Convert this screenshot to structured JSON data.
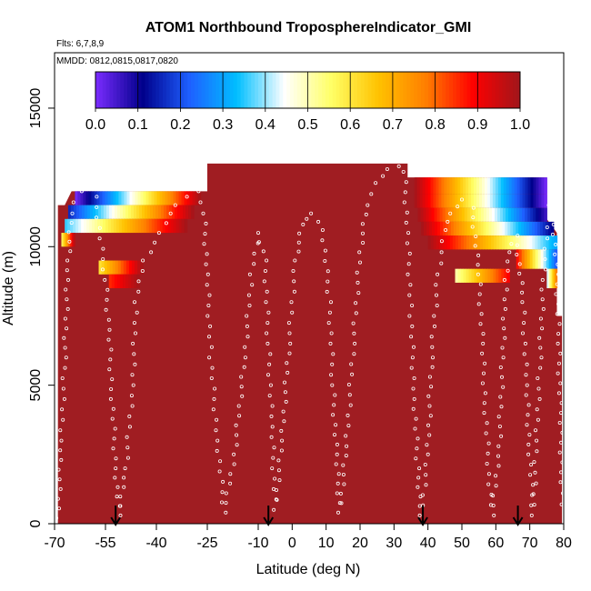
{
  "chart_data": {
    "type": "heatmap",
    "title": "ATOM1 Northbound TroposphereIndicator_GMI",
    "flights_label": "Flts: 6,7,8,9",
    "dates_label": "MMDD: 0812,0815,0817,0820",
    "xlabel": "Latitude (deg N)",
    "ylabel": "Altitude (m)",
    "xlim": [
      -70,
      80
    ],
    "ylim": [
      0,
      17000
    ],
    "x_ticks": [
      -70,
      -55,
      -40,
      -25,
      -10,
      0,
      10,
      20,
      30,
      40,
      50,
      60,
      70,
      80
    ],
    "x_tick_labels": [
      "-70",
      "-55",
      "-40",
      "-25",
      "-10",
      "0",
      "10",
      "20",
      "30",
      "40",
      "50",
      "60",
      "70",
      "80"
    ],
    "y_ticks": [
      0,
      5000,
      10000,
      15000
    ],
    "y_tick_labels": [
      "0",
      "5000",
      "10000",
      "15000"
    ],
    "colorbar": {
      "ticks": [
        0.0,
        0.1,
        0.2,
        0.3,
        0.4,
        0.5,
        0.6,
        0.7,
        0.8,
        0.9,
        1.0
      ],
      "tick_labels": [
        "0.0",
        "0.1",
        "0.2",
        "0.3",
        "0.4",
        "0.5",
        "0.6",
        "0.7",
        "0.8",
        "0.9",
        "1.0"
      ],
      "colors": [
        "#7b2cff",
        "#00008b",
        "#1e60ff",
        "#00bfff",
        "#ffffff",
        "#ffff66",
        "#ffc200",
        "#ff7f00",
        "#ff0000",
        "#a0161b"
      ]
    },
    "background_value": 1.0,
    "background_color": "#a01d22",
    "domain": [
      {
        "x": -69,
        "top": 11500
      },
      {
        "x": -67,
        "top": 11500
      },
      {
        "x": -65,
        "top": 12000
      },
      {
        "x": -25,
        "top": 12000
      },
      {
        "x": -25,
        "top": 13000
      },
      {
        "x": 34,
        "top": 13000
      },
      {
        "x": 34,
        "top": 12500
      },
      {
        "x": 75,
        "top": 12500
      },
      {
        "x": 75,
        "top": 11000
      },
      {
        "x": 78,
        "top": 10500
      },
      {
        "x": 78,
        "top": 7500
      },
      {
        "x": 79.5,
        "top": 7500
      }
    ],
    "gradient_bands": [
      {
        "x0": -64,
        "x1": -27,
        "y0": 11500,
        "y1": 12000,
        "values_from": 0.0,
        "values_to": 1.0
      },
      {
        "x0": -66,
        "x1": -29,
        "y0": 11000,
        "y1": 11500,
        "values_from": 0.15,
        "values_to": 1.0
      },
      {
        "x0": -67,
        "x1": -31,
        "y0": 10500,
        "y1": 11000,
        "values_from": 0.35,
        "values_to": 1.0
      },
      {
        "x0": -68,
        "x1": -64,
        "y0": 10000,
        "y1": 10500,
        "values_from": 0.55,
        "values_to": 1.0
      },
      {
        "x0": -57,
        "x1": -44,
        "y0": 9000,
        "y1": 9500,
        "values_from": 0.6,
        "values_to": 1.0
      },
      {
        "x0": -54,
        "x1": -45,
        "y0": 8500,
        "y1": 9000,
        "values_from": 0.85,
        "values_to": 1.0
      },
      {
        "x0": 36,
        "x1": 75,
        "y0": 11900,
        "y1": 12500,
        "values_from": 1.0,
        "values_to": 0.0
      },
      {
        "x0": 36,
        "x1": 75,
        "y0": 11400,
        "y1": 11900,
        "values_from": 1.0,
        "values_to": 0.0
      },
      {
        "x0": 37,
        "x1": 75,
        "y0": 10900,
        "y1": 11400,
        "values_from": 1.0,
        "values_to": 0.05
      },
      {
        "x0": 38,
        "x1": 77,
        "y0": 10400,
        "y1": 10900,
        "values_from": 1.0,
        "values_to": 0.1
      },
      {
        "x0": 40,
        "x1": 78,
        "y0": 9900,
        "y1": 10400,
        "values_from": 1.0,
        "values_to": 0.3
      },
      {
        "x0": 66,
        "x1": 78,
        "y0": 9200,
        "y1": 9900,
        "values_from": 0.9,
        "values_to": 0.2
      },
      {
        "x0": 48,
        "x1": 64,
        "y0": 8700,
        "y1": 9200,
        "values_from": 0.5,
        "values_to": 0.9
      },
      {
        "x0": 75,
        "x1": 78,
        "y0": 8500,
        "y1": 9200,
        "values_from": 0.4,
        "values_to": 0.8
      }
    ],
    "flight_tracks": [
      {
        "name": "6",
        "points": [
          [
            -69,
            200
          ],
          [
            -68,
            3000
          ],
          [
            -67,
            6000
          ],
          [
            -66,
            9500
          ],
          [
            -65,
            11200
          ],
          [
            -64,
            11600
          ],
          [
            -62,
            12000
          ],
          [
            -58,
            11800
          ],
          [
            -55,
            8800
          ],
          [
            -54,
            7000
          ],
          [
            -53,
            4500
          ],
          [
            -52,
            2000
          ],
          [
            -51,
            300
          ],
          [
            -49,
            2000
          ],
          [
            -47,
            5000
          ],
          [
            -46,
            8000
          ],
          [
            -44,
            9500
          ],
          [
            -42,
            9800
          ],
          [
            -39,
            10500
          ],
          [
            -36,
            11200
          ],
          [
            -34,
            11500
          ],
          [
            -31,
            11800
          ],
          [
            -28,
            12000
          ],
          [
            -26,
            11200
          ],
          [
            -25,
            9000
          ],
          [
            -24,
            6000
          ],
          [
            -22,
            3000
          ],
          [
            -20,
            400
          ],
          [
            -17,
            2500
          ],
          [
            -14,
            6000
          ],
          [
            -12,
            9000
          ],
          [
            -10,
            10500
          ],
          [
            -8,
            9500
          ],
          [
            -7,
            6500
          ],
          [
            -6,
            3500
          ],
          [
            -5,
            500
          ]
        ]
      },
      {
        "name": "7",
        "points": [
          [
            -5,
            500
          ],
          [
            -3,
            3000
          ],
          [
            -1,
            6500
          ],
          [
            1,
            9500
          ],
          [
            3,
            10800
          ],
          [
            6,
            11200
          ],
          [
            9,
            10600
          ],
          [
            11,
            8000
          ],
          [
            12,
            5000
          ],
          [
            13,
            2500
          ],
          [
            14,
            400
          ],
          [
            16,
            2800
          ],
          [
            18,
            6500
          ],
          [
            20,
            9800
          ],
          [
            22,
            11500
          ],
          [
            25,
            12300
          ],
          [
            28,
            12800
          ],
          [
            31,
            12900
          ],
          [
            33,
            12700
          ],
          [
            34,
            10500
          ],
          [
            35,
            7500
          ],
          [
            36,
            4500
          ],
          [
            37,
            2000
          ],
          [
            38,
            300
          ]
        ]
      },
      {
        "name": "8",
        "points": [
          [
            38,
            300
          ],
          [
            40,
            2500
          ],
          [
            41,
            6000
          ],
          [
            43,
            9000
          ],
          [
            45,
            10600
          ],
          [
            47,
            11200
          ],
          [
            50,
            11700
          ],
          [
            53,
            11400
          ],
          [
            55,
            9000
          ],
          [
            56,
            6500
          ],
          [
            57,
            4000
          ],
          [
            58,
            1800
          ],
          [
            59,
            300
          ],
          [
            61,
            2800
          ],
          [
            62,
            6000
          ],
          [
            63,
            8800
          ],
          [
            64,
            9800
          ],
          [
            66,
            10400
          ],
          [
            68,
            8000
          ],
          [
            69,
            5000
          ],
          [
            70,
            2500
          ],
          [
            71,
            300
          ]
        ]
      },
      {
        "name": "9",
        "points": [
          [
            71,
            300
          ],
          [
            72,
            3000
          ],
          [
            73,
            6000
          ],
          [
            74,
            8800
          ],
          [
            75,
            10300
          ],
          [
            76,
            11500
          ],
          [
            77,
            10800
          ],
          [
            78,
            9000
          ],
          [
            78.5,
            6500
          ],
          [
            79,
            4000
          ],
          [
            79.5,
            1500
          ],
          [
            79.6,
            300
          ]
        ]
      }
    ],
    "arrows": [
      {
        "x": -52,
        "label_value": "arrow"
      },
      {
        "x": -7,
        "label_value": "arrow"
      },
      {
        "x": 38.5,
        "label_value": "arrow"
      },
      {
        "x": 66.5,
        "label_value": "arrow"
      }
    ]
  }
}
